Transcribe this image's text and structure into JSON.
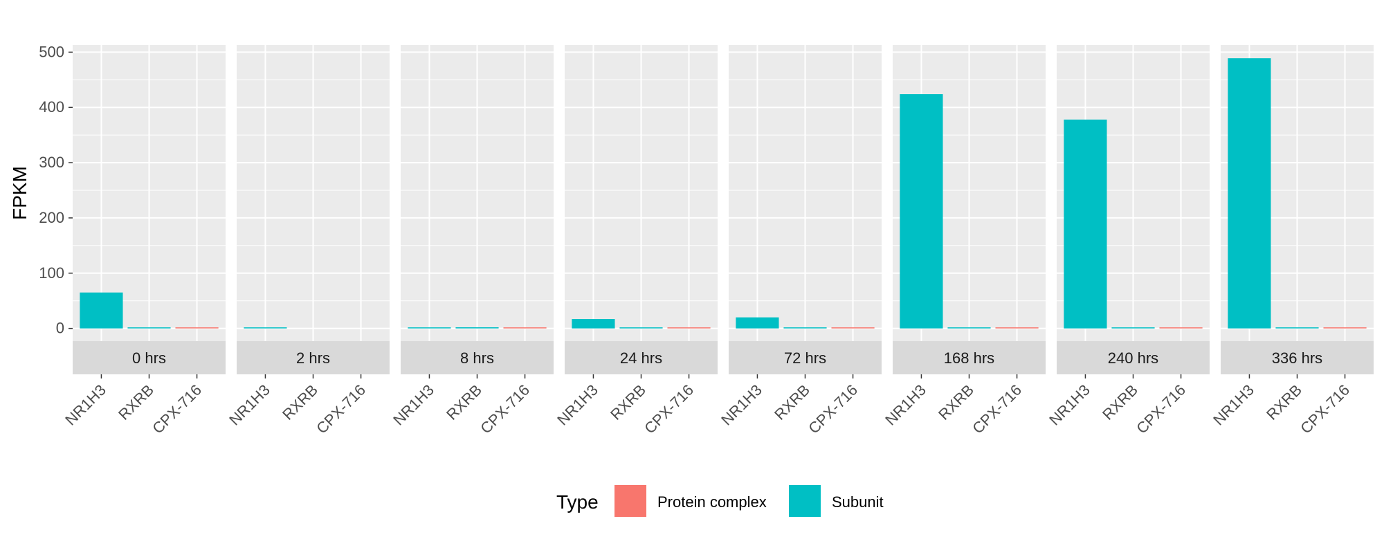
{
  "chart_data": {
    "type": "bar",
    "ylabel": "FPKM",
    "ylim": [
      -23,
      513
    ],
    "y_ticks": [
      0,
      100,
      200,
      300,
      400,
      500
    ],
    "categories": [
      "NR1H3",
      "RXRB",
      "CPX-716"
    ],
    "category_types": [
      "Subunit",
      "Subunit",
      "Protein complex"
    ],
    "facet_variable": "timepoint",
    "facets": [
      {
        "label": "0 hrs",
        "values": [
          65,
          1,
          1
        ]
      },
      {
        "label": "2 hrs",
        "values": [
          1,
          0,
          0
        ]
      },
      {
        "label": "8 hrs",
        "values": [
          1,
          2,
          1
        ]
      },
      {
        "label": "24 hrs",
        "values": [
          17,
          1,
          1
        ]
      },
      {
        "label": "72 hrs",
        "values": [
          20,
          1,
          1
        ]
      },
      {
        "label": "168 hrs",
        "values": [
          424,
          1,
          1
        ]
      },
      {
        "label": "240 hrs",
        "values": [
          378,
          1,
          1
        ]
      },
      {
        "label": "336 hrs",
        "values": [
          489,
          1,
          1
        ]
      }
    ],
    "legend": {
      "title": "Type",
      "position": "bottom",
      "items": [
        {
          "label": "Protein complex",
          "color": "#F8766D"
        },
        {
          "label": "Subunit",
          "color": "#00BFC4"
        }
      ]
    },
    "grid": true,
    "panel_background": "#EBEBEB",
    "strip_background": "#D9D9D9"
  }
}
